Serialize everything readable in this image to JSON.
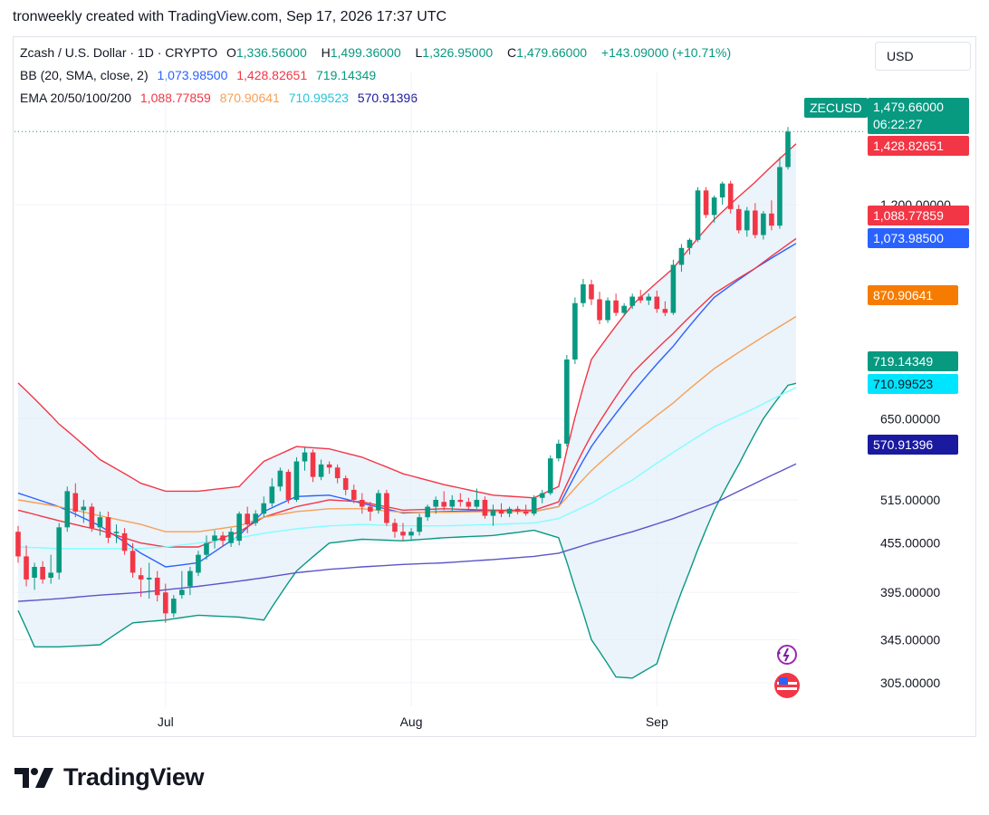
{
  "caption": "tronweekly created with TradingView.com, Sep 17, 2026 17:37 UTC",
  "currency": "USD",
  "symbol_badge": "ZECUSD",
  "brand": "TradingView",
  "legend": {
    "line1": {
      "title": "Zcash / U.S. Dollar · 1D · CRYPTO",
      "o_label": "O",
      "o": "1,336.56000",
      "h_label": "H",
      "h": "1,499.36000",
      "l_label": "L",
      "l": "1,326.95000",
      "c_label": "C",
      "c": "1,479.66000",
      "change": "+143.09000 (+10.71%)"
    },
    "line2": {
      "title": "BB (20, SMA, close, 2)",
      "basis": "1,073.98500",
      "upper": "1,428.82651",
      "lower": "719.14349"
    },
    "line3": {
      "title": "EMA 20/50/100/200",
      "ema20": "1,088.77859",
      "ema50": "870.90641",
      "ema100": "710.99523",
      "ema200": "570.91396"
    }
  },
  "price_label": {
    "price": "1,479.66000",
    "countdown": "06:22:27"
  },
  "colors": {
    "up": "#089981",
    "down": "#f23645",
    "bb_basis": "#2962ff",
    "bb_upper": "#f23645",
    "bb_lower": "#089981",
    "bb_fill": "#e3eef9",
    "ema20": "#f23645",
    "ema50": "#f7a055",
    "ema100": "#80ffff",
    "ema200": "#5b55c8",
    "grid": "#f0f3fa",
    "axis_text": "#131722"
  },
  "chart_data": {
    "type": "candlestick",
    "title": "Zcash / U.S. Dollar · 1D · CRYPTO",
    "xlabel": "",
    "ylabel": "",
    "x_ticks": [
      "Jul",
      "Aug",
      "Sep"
    ],
    "y_ticks": [
      "305.00000",
      "345.00000",
      "395.00000",
      "455.00000",
      "515.00000",
      "650.00000",
      "1,200.00000"
    ],
    "y_scale": "log",
    "ylim": [
      285,
      1580
    ],
    "grid": true,
    "candles": [
      {
        "o": 470,
        "h": 478,
        "l": 430,
        "c": 438
      },
      {
        "o": 438,
        "h": 452,
        "l": 402,
        "c": 410
      },
      {
        "o": 412,
        "h": 430,
        "l": 398,
        "c": 425
      },
      {
        "o": 425,
        "h": 432,
        "l": 405,
        "c": 410
      },
      {
        "o": 412,
        "h": 440,
        "l": 405,
        "c": 418
      },
      {
        "o": 418,
        "h": 482,
        "l": 410,
        "c": 476
      },
      {
        "o": 476,
        "h": 535,
        "l": 470,
        "c": 528
      },
      {
        "o": 525,
        "h": 540,
        "l": 490,
        "c": 498
      },
      {
        "o": 500,
        "h": 515,
        "l": 482,
        "c": 505
      },
      {
        "o": 505,
        "h": 510,
        "l": 470,
        "c": 475
      },
      {
        "o": 476,
        "h": 498,
        "l": 465,
        "c": 490
      },
      {
        "o": 490,
        "h": 498,
        "l": 455,
        "c": 462
      },
      {
        "o": 468,
        "h": 480,
        "l": 455,
        "c": 470
      },
      {
        "o": 468,
        "h": 475,
        "l": 440,
        "c": 445
      },
      {
        "o": 445,
        "h": 455,
        "l": 412,
        "c": 418
      },
      {
        "o": 415,
        "h": 424,
        "l": 390,
        "c": 410
      },
      {
        "o": 410,
        "h": 430,
        "l": 388,
        "c": 412
      },
      {
        "o": 412,
        "h": 420,
        "l": 385,
        "c": 392
      },
      {
        "o": 395,
        "h": 405,
        "l": 362,
        "c": 372
      },
      {
        "o": 372,
        "h": 392,
        "l": 368,
        "c": 388
      },
      {
        "o": 392,
        "h": 420,
        "l": 388,
        "c": 398
      },
      {
        "o": 402,
        "h": 425,
        "l": 392,
        "c": 420
      },
      {
        "o": 418,
        "h": 445,
        "l": 414,
        "c": 440
      },
      {
        "o": 440,
        "h": 465,
        "l": 434,
        "c": 455
      },
      {
        "o": 458,
        "h": 472,
        "l": 448,
        "c": 465
      },
      {
        "o": 465,
        "h": 470,
        "l": 450,
        "c": 458
      },
      {
        "o": 455,
        "h": 475,
        "l": 450,
        "c": 470
      },
      {
        "o": 458,
        "h": 498,
        "l": 452,
        "c": 495
      },
      {
        "o": 495,
        "h": 505,
        "l": 468,
        "c": 480
      },
      {
        "o": 482,
        "h": 500,
        "l": 478,
        "c": 495
      },
      {
        "o": 495,
        "h": 520,
        "l": 490,
        "c": 510
      },
      {
        "o": 510,
        "h": 548,
        "l": 505,
        "c": 535
      },
      {
        "o": 535,
        "h": 565,
        "l": 528,
        "c": 560
      },
      {
        "o": 558,
        "h": 562,
        "l": 510,
        "c": 515
      },
      {
        "o": 515,
        "h": 582,
        "l": 512,
        "c": 575
      },
      {
        "o": 575,
        "h": 598,
        "l": 560,
        "c": 590
      },
      {
        "o": 590,
        "h": 595,
        "l": 542,
        "c": 550
      },
      {
        "o": 550,
        "h": 578,
        "l": 545,
        "c": 570
      },
      {
        "o": 570,
        "h": 575,
        "l": 555,
        "c": 565
      },
      {
        "o": 565,
        "h": 570,
        "l": 540,
        "c": 548
      },
      {
        "o": 548,
        "h": 552,
        "l": 522,
        "c": 530
      },
      {
        "o": 530,
        "h": 538,
        "l": 510,
        "c": 515
      },
      {
        "o": 515,
        "h": 525,
        "l": 495,
        "c": 505
      },
      {
        "o": 505,
        "h": 512,
        "l": 485,
        "c": 498
      },
      {
        "o": 500,
        "h": 530,
        "l": 495,
        "c": 525
      },
      {
        "o": 525,
        "h": 530,
        "l": 478,
        "c": 482
      },
      {
        "o": 482,
        "h": 488,
        "l": 462,
        "c": 470
      },
      {
        "o": 470,
        "h": 482,
        "l": 458,
        "c": 465
      },
      {
        "o": 465,
        "h": 475,
        "l": 458,
        "c": 470
      },
      {
        "o": 470,
        "h": 495,
        "l": 465,
        "c": 490
      },
      {
        "o": 490,
        "h": 508,
        "l": 485,
        "c": 505
      },
      {
        "o": 505,
        "h": 520,
        "l": 495,
        "c": 515
      },
      {
        "o": 512,
        "h": 528,
        "l": 500,
        "c": 505
      },
      {
        "o": 505,
        "h": 522,
        "l": 498,
        "c": 515
      },
      {
        "o": 515,
        "h": 525,
        "l": 505,
        "c": 512
      },
      {
        "o": 512,
        "h": 518,
        "l": 500,
        "c": 505
      },
      {
        "o": 505,
        "h": 532,
        "l": 502,
        "c": 515
      },
      {
        "o": 515,
        "h": 520,
        "l": 488,
        "c": 492
      },
      {
        "o": 492,
        "h": 508,
        "l": 478,
        "c": 500
      },
      {
        "o": 500,
        "h": 510,
        "l": 490,
        "c": 495
      },
      {
        "o": 495,
        "h": 505,
        "l": 490,
        "c": 502
      },
      {
        "o": 502,
        "h": 506,
        "l": 494,
        "c": 498
      },
      {
        "o": 498,
        "h": 508,
        "l": 492,
        "c": 495
      },
      {
        "o": 495,
        "h": 522,
        "l": 492,
        "c": 518
      },
      {
        "o": 518,
        "h": 530,
        "l": 510,
        "c": 525
      },
      {
        "o": 525,
        "h": 585,
        "l": 522,
        "c": 580
      },
      {
        "o": 580,
        "h": 612,
        "l": 575,
        "c": 605
      },
      {
        "o": 605,
        "h": 780,
        "l": 600,
        "c": 770
      },
      {
        "o": 770,
        "h": 920,
        "l": 760,
        "c": 905
      },
      {
        "o": 905,
        "h": 970,
        "l": 895,
        "c": 955
      },
      {
        "o": 955,
        "h": 968,
        "l": 900,
        "c": 915
      },
      {
        "o": 915,
        "h": 935,
        "l": 852,
        "c": 862
      },
      {
        "o": 862,
        "h": 920,
        "l": 855,
        "c": 912
      },
      {
        "o": 912,
        "h": 930,
        "l": 872,
        "c": 880
      },
      {
        "o": 880,
        "h": 905,
        "l": 872,
        "c": 898
      },
      {
        "o": 898,
        "h": 930,
        "l": 890,
        "c": 922
      },
      {
        "o": 922,
        "h": 940,
        "l": 905,
        "c": 912
      },
      {
        "o": 912,
        "h": 930,
        "l": 900,
        "c": 922
      },
      {
        "o": 922,
        "h": 938,
        "l": 880,
        "c": 890
      },
      {
        "o": 890,
        "h": 910,
        "l": 872,
        "c": 880
      },
      {
        "o": 880,
        "h": 1025,
        "l": 875,
        "c": 1010
      },
      {
        "o": 1010,
        "h": 1072,
        "l": 990,
        "c": 1060
      },
      {
        "o": 1060,
        "h": 1090,
        "l": 1040,
        "c": 1085
      },
      {
        "o": 1085,
        "h": 1262,
        "l": 1078,
        "c": 1250
      },
      {
        "o": 1250,
        "h": 1262,
        "l": 1155,
        "c": 1165
      },
      {
        "o": 1165,
        "h": 1232,
        "l": 1140,
        "c": 1225
      },
      {
        "o": 1225,
        "h": 1282,
        "l": 1200,
        "c": 1275
      },
      {
        "o": 1275,
        "h": 1285,
        "l": 1170,
        "c": 1185
      },
      {
        "o": 1185,
        "h": 1200,
        "l": 1105,
        "c": 1115
      },
      {
        "o": 1115,
        "h": 1192,
        "l": 1095,
        "c": 1180
      },
      {
        "o": 1180,
        "h": 1205,
        "l": 1090,
        "c": 1100
      },
      {
        "o": 1100,
        "h": 1178,
        "l": 1086,
        "c": 1170
      },
      {
        "o": 1170,
        "h": 1215,
        "l": 1115,
        "c": 1130
      },
      {
        "o": 1130,
        "h": 1375,
        "l": 1120,
        "c": 1336.56
      },
      {
        "o": 1336.56,
        "h": 1499.36,
        "l": 1326.95,
        "c": 1479.66
      }
    ],
    "series": [
      {
        "name": "BB Upper",
        "values": [
          [
            0,
            720
          ],
          [
            5,
            640
          ],
          [
            10,
            578
          ],
          [
            15,
            540
          ],
          [
            18,
            528
          ],
          [
            22,
            528
          ],
          [
            27,
            535
          ],
          [
            30,
            575
          ],
          [
            34,
            600
          ],
          [
            38,
            596
          ],
          [
            42,
            582
          ],
          [
            47,
            555
          ],
          [
            52,
            538
          ],
          [
            58,
            522
          ],
          [
            63,
            518
          ],
          [
            66,
            535
          ],
          [
            70,
            770
          ],
          [
            75,
            900
          ],
          [
            80,
            1000
          ],
          [
            85,
            1150
          ],
          [
            90,
            1280
          ],
          [
            95,
            1428.83
          ]
        ]
      },
      {
        "name": "BB Basis",
        "values": [
          [
            0,
            525
          ],
          [
            5,
            505
          ],
          [
            10,
            478
          ],
          [
            15,
            442
          ],
          [
            18,
            425
          ],
          [
            22,
            430
          ],
          [
            27,
            465
          ],
          [
            30,
            498
          ],
          [
            34,
            520
          ],
          [
            38,
            522
          ],
          [
            42,
            510
          ],
          [
            47,
            496
          ],
          [
            52,
            498
          ],
          [
            58,
            500
          ],
          [
            63,
            498
          ],
          [
            66,
            505
          ],
          [
            70,
            600
          ],
          [
            75,
            700
          ],
          [
            80,
            800
          ],
          [
            85,
            920
          ],
          [
            90,
            1000
          ],
          [
            95,
            1073.99
          ]
        ]
      },
      {
        "name": "BB Lower",
        "values": [
          [
            0,
            375
          ],
          [
            2,
            338
          ],
          [
            5,
            338
          ],
          [
            10,
            340
          ],
          [
            14,
            362
          ],
          [
            18,
            365
          ],
          [
            22,
            370
          ],
          [
            27,
            368
          ],
          [
            30,
            365
          ],
          [
            34,
            420
          ],
          [
            38,
            455
          ],
          [
            42,
            460
          ],
          [
            47,
            458
          ],
          [
            52,
            462
          ],
          [
            58,
            465
          ],
          [
            63,
            472
          ],
          [
            66,
            462
          ],
          [
            68,
            400
          ],
          [
            70,
            345
          ],
          [
            73,
            310
          ],
          [
            75,
            309
          ],
          [
            78,
            322
          ],
          [
            82,
            420
          ],
          [
            85,
            500
          ],
          [
            88,
            570
          ],
          [
            91,
            650
          ],
          [
            94,
            715
          ],
          [
            95,
            719.14
          ]
        ]
      },
      {
        "name": "EMA 20",
        "values": [
          [
            0,
            500
          ],
          [
            5,
            485
          ],
          [
            10,
            472
          ],
          [
            15,
            455
          ],
          [
            18,
            450
          ],
          [
            22,
            450
          ],
          [
            27,
            470
          ],
          [
            30,
            490
          ],
          [
            34,
            505
          ],
          [
            38,
            515
          ],
          [
            42,
            512
          ],
          [
            47,
            500
          ],
          [
            52,
            502
          ],
          [
            58,
            500
          ],
          [
            63,
            500
          ],
          [
            66,
            512
          ],
          [
            70,
            620
          ],
          [
            75,
            740
          ],
          [
            80,
            830
          ],
          [
            85,
            930
          ],
          [
            90,
            1000
          ],
          [
            95,
            1088.78
          ]
        ]
      },
      {
        "name": "EMA 50",
        "values": [
          [
            0,
            515
          ],
          [
            5,
            505
          ],
          [
            10,
            492
          ],
          [
            15,
            480
          ],
          [
            18,
            470
          ],
          [
            22,
            470
          ],
          [
            27,
            478
          ],
          [
            30,
            490
          ],
          [
            34,
            498
          ],
          [
            38,
            502
          ],
          [
            42,
            502
          ],
          [
            47,
            497
          ],
          [
            52,
            497
          ],
          [
            58,
            498
          ],
          [
            63,
            498
          ],
          [
            66,
            505
          ],
          [
            70,
            560
          ],
          [
            75,
            620
          ],
          [
            80,
            680
          ],
          [
            85,
            750
          ],
          [
            90,
            810
          ],
          [
            95,
            870.91
          ]
        ]
      },
      {
        "name": "EMA 100",
        "values": [
          [
            0,
            450
          ],
          [
            5,
            448
          ],
          [
            10,
            448
          ],
          [
            15,
            448
          ],
          [
            18,
            450
          ],
          [
            22,
            455
          ],
          [
            27,
            462
          ],
          [
            30,
            468
          ],
          [
            34,
            474
          ],
          [
            38,
            478
          ],
          [
            42,
            480
          ],
          [
            47,
            478
          ],
          [
            52,
            478
          ],
          [
            58,
            480
          ],
          [
            63,
            482
          ],
          [
            66,
            488
          ],
          [
            70,
            510
          ],
          [
            75,
            545
          ],
          [
            80,
            590
          ],
          [
            85,
            635
          ],
          [
            90,
            670
          ],
          [
            95,
            710.99
          ]
        ]
      },
      {
        "name": "EMA 200",
        "values": [
          [
            0,
            385
          ],
          [
            5,
            388
          ],
          [
            10,
            392
          ],
          [
            15,
            395
          ],
          [
            18,
            398
          ],
          [
            22,
            402
          ],
          [
            27,
            408
          ],
          [
            30,
            412
          ],
          [
            34,
            418
          ],
          [
            38,
            422
          ],
          [
            42,
            425
          ],
          [
            47,
            428
          ],
          [
            52,
            430
          ],
          [
            58,
            434
          ],
          [
            63,
            438
          ],
          [
            66,
            442
          ],
          [
            70,
            455
          ],
          [
            75,
            470
          ],
          [
            80,
            488
          ],
          [
            85,
            510
          ],
          [
            90,
            540
          ],
          [
            95,
            570.91
          ]
        ]
      }
    ]
  }
}
